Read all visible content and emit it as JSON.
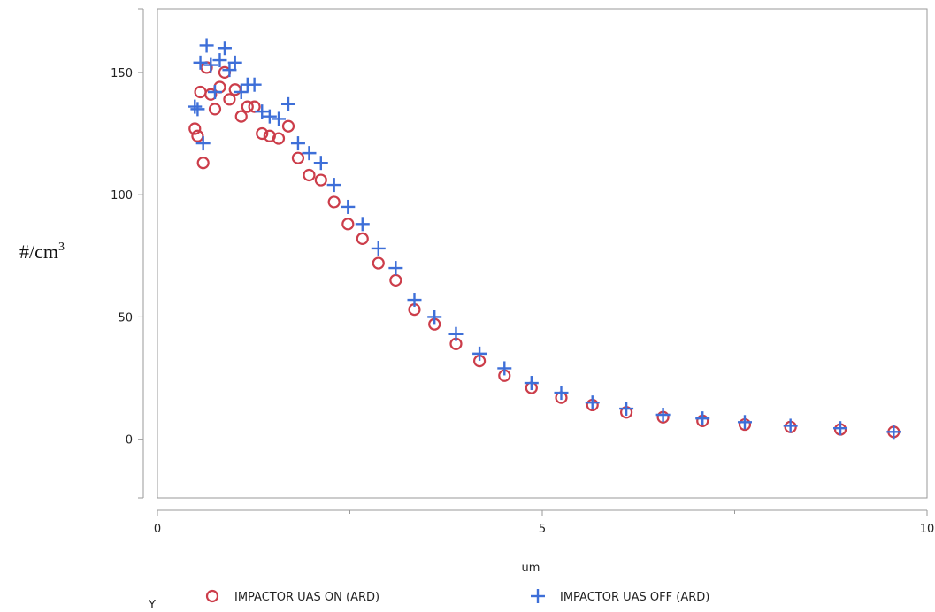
{
  "chart_data": {
    "type": "scatter",
    "title": "",
    "xlabel": "um",
    "ylabel_base": "#/cm",
    "ylabel_sup": "3",
    "legend_prefix": "Y",
    "xlim": [
      0,
      10
    ],
    "ylim": [
      -24,
      176
    ],
    "x_ticks": [
      0,
      5,
      10
    ],
    "x_minor_ticks": [
      2.5,
      7.5
    ],
    "y_ticks": [
      0,
      50,
      100,
      150
    ],
    "grid": false,
    "legend_position": "bottom",
    "series": [
      {
        "name": "IMPACTOR UAS ON (ARD)",
        "marker": "circle",
        "color": "#cc3d4a",
        "points": [
          [
            0.54,
            127
          ],
          [
            0.58,
            124
          ],
          [
            0.62,
            142
          ],
          [
            0.66,
            113
          ],
          [
            0.71,
            152
          ],
          [
            0.77,
            141
          ],
          [
            0.83,
            135
          ],
          [
            0.9,
            144
          ],
          [
            0.97,
            150
          ],
          [
            1.04,
            139
          ],
          [
            1.12,
            143
          ],
          [
            1.21,
            132
          ],
          [
            1.3,
            136
          ],
          [
            1.4,
            136
          ],
          [
            1.51,
            125
          ],
          [
            1.62,
            124
          ],
          [
            1.75,
            123
          ],
          [
            1.89,
            128
          ],
          [
            2.03,
            115
          ],
          [
            2.19,
            108
          ],
          [
            2.36,
            106
          ],
          [
            2.55,
            97
          ],
          [
            2.75,
            88
          ],
          [
            2.96,
            82
          ],
          [
            3.19,
            72
          ],
          [
            3.44,
            65
          ],
          [
            3.71,
            53
          ],
          [
            4.0,
            47
          ],
          [
            4.31,
            39
          ],
          [
            4.65,
            32
          ],
          [
            5.01,
            26
          ],
          [
            5.4,
            21
          ],
          [
            5.83,
            17
          ],
          [
            6.28,
            14
          ],
          [
            6.77,
            11
          ],
          [
            7.3,
            9
          ],
          [
            7.87,
            7.5
          ],
          [
            8.48,
            6
          ],
          [
            9.14,
            5
          ],
          [
            9.86,
            4
          ],
          [
            10.63,
            3
          ]
        ]
      },
      {
        "name": "IMPACTOR UAS OFF (ARD)",
        "marker": "plus",
        "color": "#3e6fd8",
        "points": [
          [
            0.54,
            136
          ],
          [
            0.58,
            135
          ],
          [
            0.62,
            154
          ],
          [
            0.66,
            121
          ],
          [
            0.71,
            161
          ],
          [
            0.77,
            153
          ],
          [
            0.83,
            142
          ],
          [
            0.9,
            155
          ],
          [
            0.97,
            160
          ],
          [
            1.04,
            151
          ],
          [
            1.12,
            154
          ],
          [
            1.21,
            142
          ],
          [
            1.3,
            145
          ],
          [
            1.4,
            145
          ],
          [
            1.51,
            134
          ],
          [
            1.62,
            132
          ],
          [
            1.75,
            131
          ],
          [
            1.89,
            137
          ],
          [
            2.03,
            121
          ],
          [
            2.19,
            117
          ],
          [
            2.36,
            113
          ],
          [
            2.55,
            104
          ],
          [
            2.75,
            95
          ],
          [
            2.96,
            88
          ],
          [
            3.19,
            78
          ],
          [
            3.44,
            70
          ],
          [
            3.71,
            57
          ],
          [
            4.0,
            50
          ],
          [
            4.31,
            43
          ],
          [
            4.65,
            35
          ],
          [
            5.01,
            29
          ],
          [
            5.4,
            23
          ],
          [
            5.83,
            19
          ],
          [
            6.28,
            15
          ],
          [
            6.77,
            12.5
          ],
          [
            7.3,
            10
          ],
          [
            7.87,
            8.5
          ],
          [
            8.48,
            7
          ],
          [
            9.14,
            5.5
          ],
          [
            9.86,
            4.5
          ],
          [
            10.63,
            3
          ]
        ]
      }
    ]
  }
}
